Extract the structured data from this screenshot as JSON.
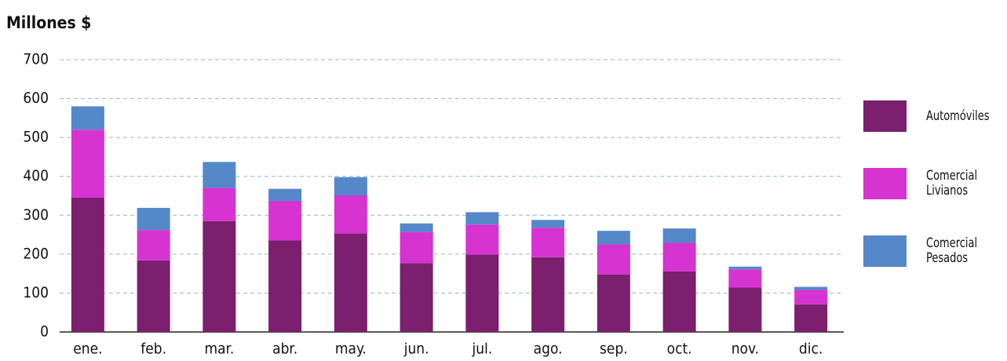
{
  "chart_data": {
    "type": "stacked_bar",
    "title": "Millones $",
    "categories": [
      "ene.",
      "feb.",
      "mar.",
      "abr.",
      "may.",
      "jun.",
      "jul.",
      "ago.",
      "sep.",
      "oct.",
      "nov.",
      "dic."
    ],
    "series": [
      {
        "name": "Automóviles",
        "color": "#7b1f6e",
        "values": [
          345,
          184,
          285,
          235,
          253,
          177,
          199,
          192,
          148,
          156,
          114,
          71
        ]
      },
      {
        "name": "Comercial Livianos",
        "color": "#d633d1",
        "values": [
          175,
          78,
          85,
          102,
          98,
          80,
          77,
          76,
          77,
          73,
          47,
          37
        ]
      },
      {
        "name": "Comercial Pesados",
        "color": "#5588c8",
        "values": [
          60,
          57,
          67,
          31,
          47,
          22,
          32,
          20,
          35,
          37,
          7,
          8
        ]
      }
    ],
    "ylim": [
      0,
      700
    ],
    "yticks": [
      0,
      100,
      200,
      300,
      400,
      500,
      600,
      700
    ],
    "grid": true
  }
}
